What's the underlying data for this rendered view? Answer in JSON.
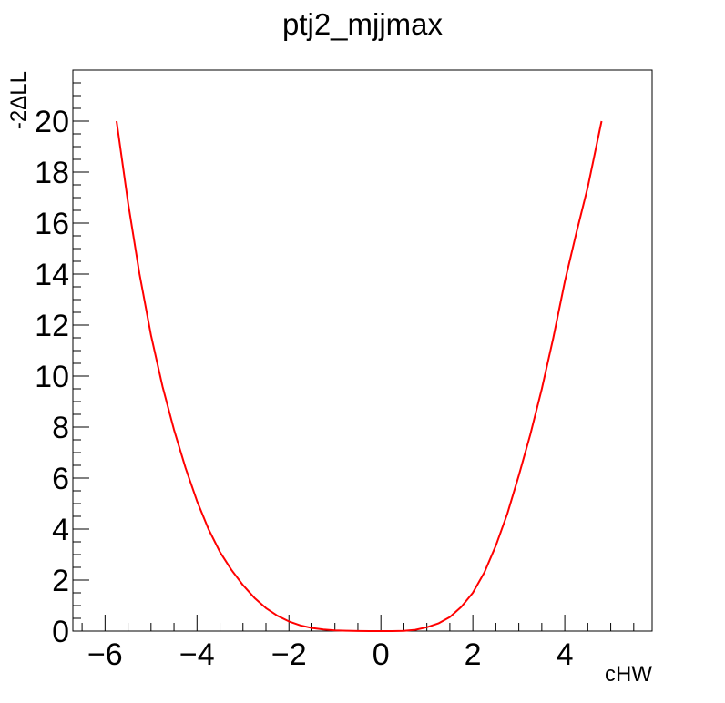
{
  "chart_data": {
    "type": "line",
    "title": "ptj2_mjjmax",
    "xlabel": "cHW",
    "ylabel": "-2ΔLL",
    "xlim": [
      -6.7,
      5.9
    ],
    "ylim": [
      0,
      22
    ],
    "grid": false,
    "legend": "none",
    "x_ticks": [
      -6,
      -4,
      -2,
      0,
      2,
      4
    ],
    "x_tick_labels": [
      "−6",
      "−4",
      "−2",
      "0",
      "2",
      "4"
    ],
    "y_ticks": [
      0,
      2,
      4,
      6,
      8,
      10,
      12,
      14,
      16,
      18,
      20
    ],
    "y_tick_labels": [
      "0",
      "2",
      "4",
      "6",
      "8",
      "10",
      "12",
      "14",
      "16",
      "18",
      "20"
    ],
    "series": [
      {
        "color": "#ff0000",
        "x": [
          -5.75,
          -5.5,
          -5.25,
          -5.0,
          -4.75,
          -4.5,
          -4.25,
          -4.0,
          -3.75,
          -3.5,
          -3.25,
          -3.0,
          -2.75,
          -2.5,
          -2.25,
          -2.0,
          -1.75,
          -1.5,
          -1.25,
          -1.0,
          -0.75,
          -0.5,
          -0.25,
          0.0,
          0.25,
          0.5,
          0.75,
          1.0,
          1.25,
          1.5,
          1.75,
          2.0,
          2.25,
          2.5,
          2.75,
          3.0,
          3.25,
          3.5,
          3.75,
          4.0,
          4.25,
          4.5,
          4.8
        ],
        "y": [
          20.0,
          16.8,
          14.0,
          11.6,
          9.6,
          7.9,
          6.4,
          5.1,
          4.0,
          3.1,
          2.4,
          1.8,
          1.3,
          0.9,
          0.6,
          0.38,
          0.22,
          0.12,
          0.06,
          0.03,
          0.015,
          0.005,
          0.0,
          0.0,
          0.0,
          0.01,
          0.05,
          0.15,
          0.3,
          0.55,
          0.95,
          1.5,
          2.3,
          3.35,
          4.6,
          6.1,
          7.7,
          9.5,
          11.5,
          13.7,
          15.6,
          17.4,
          20.0
        ]
      }
    ]
  }
}
